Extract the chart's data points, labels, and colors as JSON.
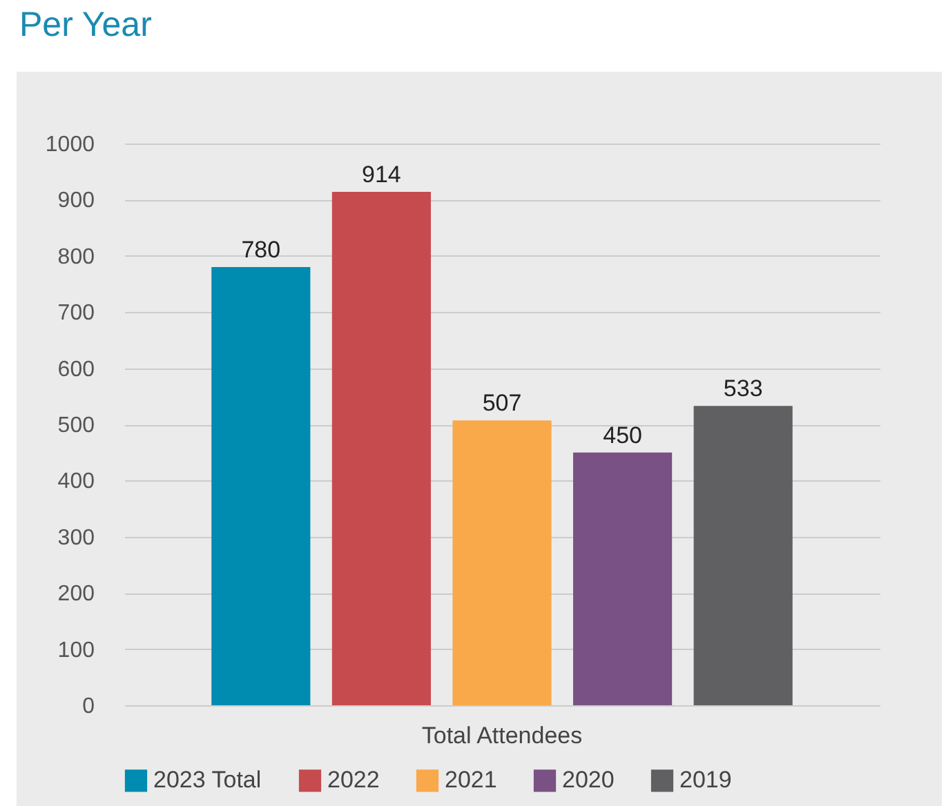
{
  "chart_data": {
    "type": "bar",
    "title": "Per Year",
    "categories": [
      "Total Attendees"
    ],
    "series": [
      {
        "name": "2023 Total",
        "color": "#008bb0",
        "values": [
          780
        ]
      },
      {
        "name": "2022",
        "color": "#c64b4f",
        "values": [
          914
        ]
      },
      {
        "name": "2021",
        "color": "#f9a84a",
        "values": [
          507
        ]
      },
      {
        "name": "2020",
        "color": "#7a5184",
        "values": [
          450
        ]
      },
      {
        "name": "2019",
        "color": "#606062",
        "values": [
          533
        ]
      }
    ],
    "ylim": [
      0,
      1000
    ],
    "yticks": [
      0,
      100,
      200,
      300,
      400,
      500,
      600,
      700,
      800,
      900,
      1000
    ],
    "grid": "y",
    "legend": "bottom",
    "data_labels": true
  }
}
